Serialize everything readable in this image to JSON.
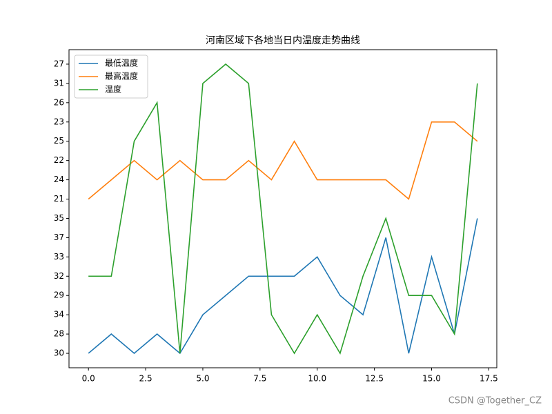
{
  "chart_data": {
    "type": "line",
    "title": "河南区域下各地当日内温度走势曲线",
    "x": [
      0,
      1,
      2,
      3,
      4,
      5,
      6,
      7,
      8,
      9,
      10,
      11,
      12,
      13,
      14,
      15,
      16,
      17
    ],
    "series": [
      {
        "name": "最低温度",
        "color": "#1f77b4",
        "values": [
          0,
          1,
          0,
          1,
          0,
          2,
          3,
          4,
          4,
          4,
          5,
          3,
          2,
          6,
          0,
          5,
          1,
          7
        ]
      },
      {
        "name": "最高温度",
        "color": "#ff7f0e",
        "values": [
          8,
          9,
          10,
          9,
          10,
          9,
          9,
          10,
          9,
          11,
          9,
          9,
          9,
          9,
          8,
          12,
          12,
          11
        ]
      },
      {
        "name": "温度",
        "color": "#2ca02c",
        "values": [
          4,
          4,
          11,
          13,
          0,
          14,
          15,
          14,
          2,
          0,
          2,
          0,
          4,
          7,
          3,
          3,
          1,
          14
        ]
      }
    ],
    "xlim": [
      -0.85,
      17.85
    ],
    "xticks": [
      {
        "value": 0,
        "label": "0.0"
      },
      {
        "value": 2.5,
        "label": "2.5"
      },
      {
        "value": 5,
        "label": "5.0"
      },
      {
        "value": 7.5,
        "label": "7.5"
      },
      {
        "value": 10,
        "label": "10.0"
      },
      {
        "value": 12.5,
        "label": "12.5"
      },
      {
        "value": 15,
        "label": "15.0"
      },
      {
        "value": 17.5,
        "label": "17.5"
      }
    ],
    "ylim": [
      -0.75,
      15.75
    ],
    "yticks": [
      {
        "value": 0,
        "label": "30"
      },
      {
        "value": 1,
        "label": "28"
      },
      {
        "value": 2,
        "label": "34"
      },
      {
        "value": 3,
        "label": "29"
      },
      {
        "value": 4,
        "label": "32"
      },
      {
        "value": 5,
        "label": "33"
      },
      {
        "value": 6,
        "label": "37"
      },
      {
        "value": 7,
        "label": "35"
      },
      {
        "value": 8,
        "label": "21"
      },
      {
        "value": 9,
        "label": "24"
      },
      {
        "value": 10,
        "label": "22"
      },
      {
        "value": 11,
        "label": "25"
      },
      {
        "value": 12,
        "label": "23"
      },
      {
        "value": 13,
        "label": "26"
      },
      {
        "value": 14,
        "label": "31"
      },
      {
        "value": 15,
        "label": "27"
      }
    ],
    "legend": "upper left",
    "watermark": "CSDN @Together_CZ"
  }
}
